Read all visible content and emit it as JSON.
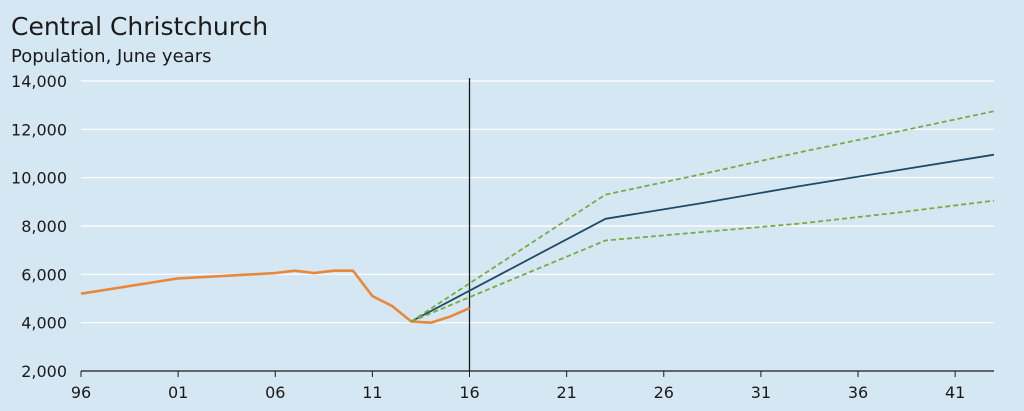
{
  "chart_data": {
    "type": "line",
    "title": "Central Christchurch",
    "subtitle": "Population, June years",
    "xlabel": "",
    "ylabel": "",
    "xlim": [
      1996,
      2043
    ],
    "ylim": [
      2000,
      14000
    ],
    "yticks": [
      2000,
      4000,
      6000,
      8000,
      10000,
      12000,
      14000
    ],
    "ytick_labels": [
      "2,000",
      "4,000",
      "6,000",
      "8,000",
      "10,000",
      "12,000",
      "14,000"
    ],
    "xticks": [
      1996,
      2001,
      2006,
      2011,
      2016,
      2021,
      2026,
      2031,
      2036,
      2041
    ],
    "xtick_labels": [
      "96",
      "01",
      "06",
      "11",
      "16",
      "21",
      "26",
      "31",
      "36",
      "41"
    ],
    "grid": true,
    "legend": "none",
    "vline_x": 2016,
    "series": [
      {
        "style": "solid",
        "color": "#e8883a",
        "x": [
          1996,
          2001,
          2006,
          2007,
          2008,
          2009,
          2010,
          2011,
          2012,
          2013,
          2014,
          2015,
          2016
        ],
        "values": [
          5200,
          5830,
          6050,
          6150,
          6050,
          6150,
          6150,
          5100,
          4700,
          4050,
          4000,
          4250,
          4600
        ]
      },
      {
        "style": "solid",
        "color": "#1d4b63",
        "x": [
          2013,
          2023,
          2028,
          2033,
          2038,
          2043
        ],
        "values": [
          4050,
          8300,
          8950,
          9650,
          10300,
          10950
        ]
      },
      {
        "style": "dashed",
        "color": "#7aaa45",
        "x": [
          2013,
          2023,
          2028,
          2033,
          2038,
          2043
        ],
        "values": [
          4050,
          9300,
          10150,
          11050,
          11900,
          12750
        ]
      },
      {
        "style": "dashed",
        "color": "#7aaa45",
        "x": [
          2013,
          2023,
          2028,
          2033,
          2038,
          2043
        ],
        "values": [
          4050,
          7400,
          7750,
          8100,
          8550,
          9050
        ]
      }
    ]
  }
}
